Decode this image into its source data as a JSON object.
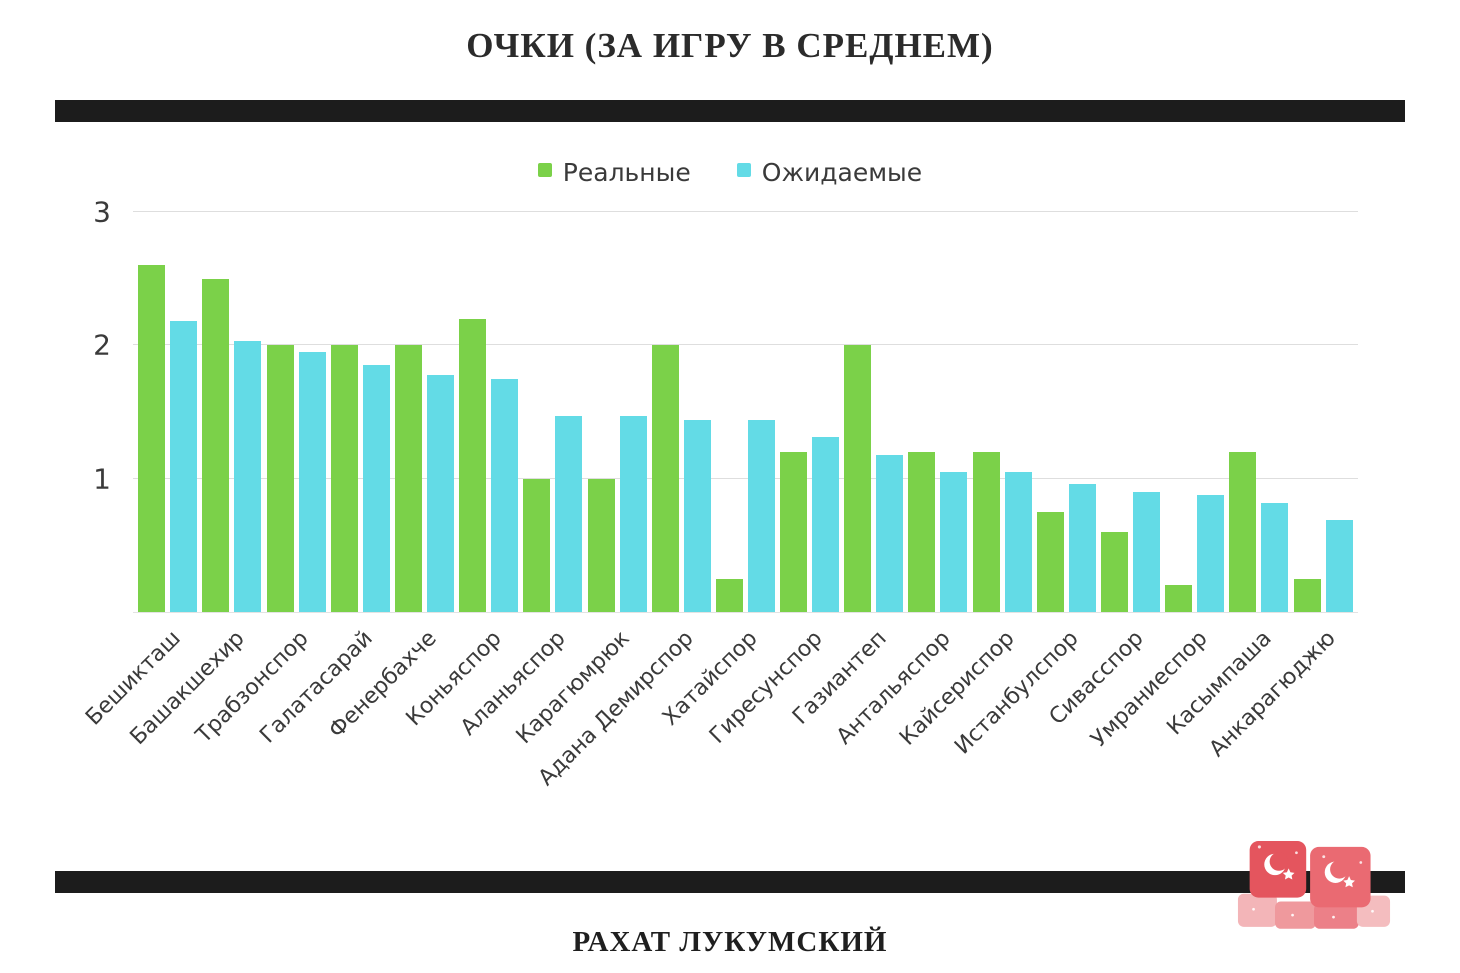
{
  "title": "ОЧКИ (ЗА ИГРУ В СРЕДНЕМ)",
  "footer": {
    "text": "РАХАТ ЛУКУМСКИЙ"
  },
  "logo": {
    "name": "turkish-delight-cubes"
  },
  "chart_data": {
    "type": "bar",
    "title": "ОЧКИ (ЗА ИГРУ В СРЕДНЕМ)",
    "categories": [
      "Бешикташ",
      "Башакшехир",
      "Трабзонспор",
      "Галатасарай",
      "Фенербахче",
      "Коньяспор",
      "Аланьяспор",
      "Карагюмрюк",
      "Адана Демирспор",
      "Хатайспор",
      "Гиресунспор",
      "Газиантеп",
      "Антальяспор",
      "Кайсериспор",
      "Истанбулспор",
      "Сивасспор",
      "Умраниеспор",
      "Касымпаша",
      "Анкарагюджю"
    ],
    "series": [
      {
        "name": "Реальные",
        "color": "#7bd149",
        "values": [
          2.6,
          2.5,
          2.0,
          2.0,
          2.0,
          2.2,
          1.0,
          1.0,
          2.0,
          0.25,
          1.2,
          2.0,
          1.2,
          1.2,
          0.75,
          0.6,
          0.2,
          1.2,
          0.25
        ]
      },
      {
        "name": "Ожидаемые",
        "color": "#63dbe6",
        "values": [
          2.18,
          2.03,
          1.95,
          1.85,
          1.78,
          1.75,
          1.47,
          1.47,
          1.44,
          1.44,
          1.31,
          1.18,
          1.05,
          1.05,
          0.96,
          0.9,
          0.88,
          0.82,
          0.69
        ]
      }
    ],
    "yticks": [
      1,
      2,
      3
    ],
    "ylim": [
      0,
      3
    ],
    "xlabel": "",
    "ylabel": "",
    "grid": true,
    "legend_position": "top"
  }
}
